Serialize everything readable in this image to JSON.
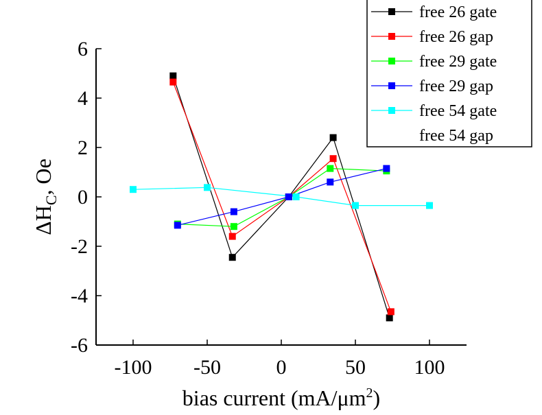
{
  "chart_data": {
    "type": "line",
    "xlabel": "bias current (mA/μm",
    "xlabel_sup": "2",
    "xlabel_end": ")",
    "ylabel_main": "ΔH",
    "ylabel_sub": "C",
    "ylabel_end": ", Oe",
    "xlim": [
      -125,
      125
    ],
    "ylim": [
      -6,
      6
    ],
    "xticks": [
      -100,
      -50,
      0,
      50,
      100
    ],
    "xtick_labels": [
      "-100",
      "-50",
      "0",
      "50",
      "100"
    ],
    "yticks": [
      -6,
      -4,
      -2,
      0,
      2,
      4,
      6
    ],
    "ytick_labels": [
      "-6",
      "-4",
      "-2",
      "0",
      "2",
      "4",
      "6"
    ],
    "grid": false,
    "legend_position": "top-right",
    "series": [
      {
        "name": "free 26 gate",
        "color": "#000000",
        "line": true,
        "x": [
          -73,
          -33,
          5,
          35,
          73
        ],
        "y": [
          4.9,
          -2.45,
          0.0,
          2.4,
          -4.9
        ]
      },
      {
        "name": "free 26 gap",
        "color": "#ff0000",
        "line": true,
        "x": [
          -73,
          -33,
          5,
          35,
          74
        ],
        "y": [
          4.65,
          -1.6,
          0.0,
          1.55,
          -4.65
        ]
      },
      {
        "name": "free 29 gate",
        "color": "#00ff00",
        "line": true,
        "x": [
          -70,
          -32,
          5,
          33,
          71
        ],
        "y": [
          -1.1,
          -1.2,
          0.0,
          1.15,
          1.05
        ]
      },
      {
        "name": "free 29 gap",
        "color": "#0000ff",
        "line": true,
        "x": [
          -70,
          -32,
          5,
          33,
          71
        ],
        "y": [
          -1.15,
          -0.6,
          0.0,
          0.6,
          1.15
        ]
      },
      {
        "name": "free 54 gate",
        "color": "#00ffff",
        "line": true,
        "x": [
          -100,
          -50,
          10,
          50,
          100
        ],
        "y": [
          0.3,
          0.38,
          0.0,
          -0.35,
          -0.35
        ]
      },
      {
        "name": "free 54 gap",
        "color": "#ffffff",
        "line": false,
        "x": [],
        "y": []
      }
    ]
  }
}
